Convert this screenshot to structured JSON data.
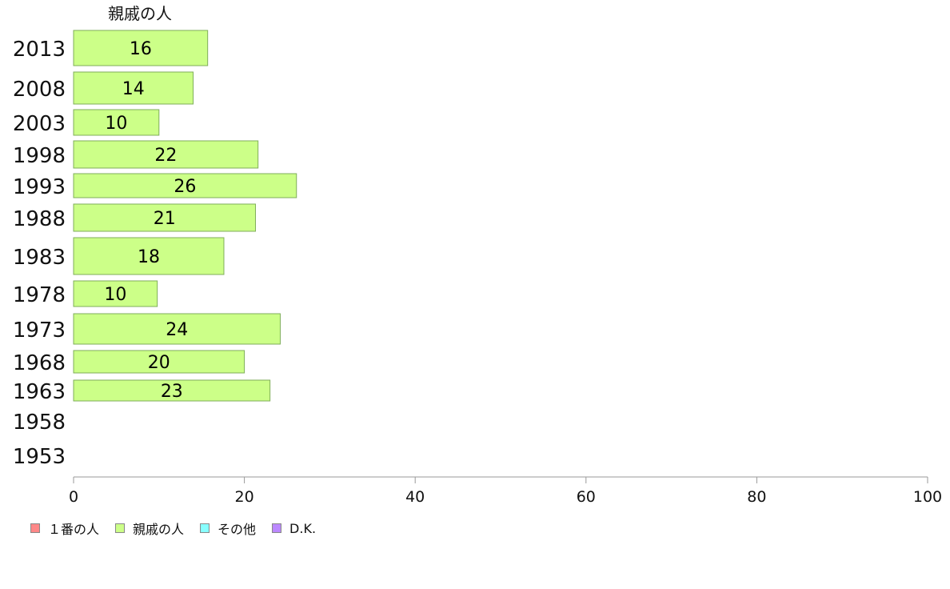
{
  "chart_data": {
    "type": "bar",
    "orientation": "horizontal",
    "series_label": "親戚の人",
    "categories": [
      "2013",
      "2008",
      "2003",
      "1998",
      "1993",
      "1988",
      "1983",
      "1978",
      "1973",
      "1968",
      "1963",
      "1958",
      "1953"
    ],
    "values": [
      16,
      14,
      10,
      22,
      26,
      21,
      18,
      10,
      24,
      20,
      23,
      null,
      null
    ],
    "bar_values": [
      15.7,
      14.0,
      10.0,
      21.6,
      26.1,
      21.3,
      17.6,
      9.8,
      24.2,
      20.0,
      23.0,
      null,
      null
    ],
    "xlim": [
      0,
      100
    ],
    "xticks": [
      0,
      20,
      40,
      60,
      80,
      100
    ],
    "grid": false,
    "series_color": "#ccff88",
    "legend_position": "bottom-left",
    "legend": [
      {
        "label": "１番の人",
        "color": "#ff8888"
      },
      {
        "label": "親戚の人",
        "color": "#ccff88"
      },
      {
        "label": "その他",
        "color": "#88ffff"
      },
      {
        "label": "D.K.",
        "color": "#bb88ff"
      }
    ]
  }
}
